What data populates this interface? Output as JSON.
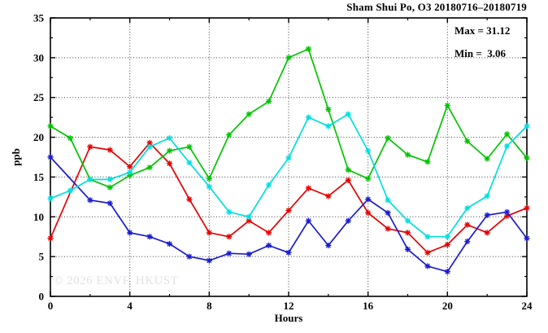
{
  "title": "Sham Shui Po, O3 20180716–20180719",
  "annotations": {
    "max": "Max = 31.12",
    "min": "Min =  3.06"
  },
  "watermark": "© 2026 ENVF, HKUST",
  "axes": {
    "x_label": "Hours",
    "y_label": "ppb"
  },
  "chart_data": {
    "type": "line",
    "title": "Sham Shui Po, O3 20180716–20180719",
    "xlabel": "Hours",
    "ylabel": "ppb",
    "xlim": [
      0,
      24
    ],
    "ylim": [
      0,
      35
    ],
    "xticks": [
      0,
      4,
      8,
      12,
      16,
      20,
      24
    ],
    "yticks": [
      0,
      5,
      10,
      15,
      20,
      25,
      30,
      35
    ],
    "x_minor_step": 2,
    "y_minor_step": 2.5,
    "grid": true,
    "legend": "none",
    "stats": {
      "max": 31.12,
      "min": 3.06
    },
    "note": "null value = line passes through but no point marker drawn at that hour",
    "x": [
      0,
      1,
      2,
      3,
      4,
      5,
      6,
      7,
      8,
      9,
      10,
      11,
      12,
      13,
      14,
      15,
      16,
      17,
      18,
      19,
      20,
      21,
      22,
      23,
      24
    ],
    "series": [
      {
        "name": "series-red",
        "color": "#e60000",
        "values": [
          7.3,
          null,
          18.8,
          18.4,
          16.3,
          19.3,
          16.7,
          12.2,
          8.0,
          7.5,
          9.5,
          8.0,
          10.8,
          13.6,
          12.6,
          14.6,
          10.5,
          8.5,
          8.0,
          5.5,
          6.5,
          9.0,
          8.0,
          10.1,
          11.1
        ]
      },
      {
        "name": "series-green",
        "color": "#00c400",
        "values": [
          21.4,
          19.9,
          14.7,
          13.7,
          15.2,
          16.2,
          18.3,
          18.8,
          14.8,
          20.3,
          22.9,
          24.5,
          30.0,
          31.1,
          23.5,
          15.9,
          14.8,
          19.9,
          17.8,
          16.9,
          24.0,
          19.5,
          17.3,
          20.4,
          17.4
        ]
      },
      {
        "name": "series-blue",
        "color": "#1a1acf",
        "values": [
          17.5,
          null,
          12.1,
          11.7,
          8.0,
          7.5,
          6.6,
          5.0,
          4.5,
          5.4,
          5.3,
          6.4,
          5.5,
          9.5,
          6.4,
          9.5,
          12.2,
          10.5,
          5.9,
          3.8,
          3.1,
          6.9,
          10.2,
          10.6,
          7.3
        ]
      },
      {
        "name": "series-cyan",
        "color": "#00dede",
        "values": [
          12.3,
          13.3,
          14.7,
          14.7,
          15.6,
          18.8,
          19.9,
          16.8,
          13.8,
          10.6,
          10.0,
          14.0,
          17.4,
          22.5,
          21.4,
          22.9,
          18.3,
          12.1,
          9.5,
          7.5,
          7.5,
          11.1,
          12.6,
          18.9,
          21.4
        ]
      }
    ]
  }
}
